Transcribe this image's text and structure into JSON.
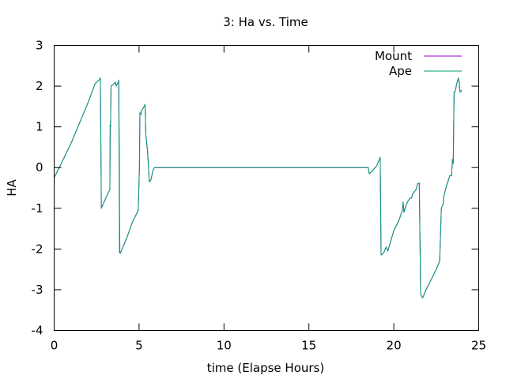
{
  "chart_data": {
    "type": "line",
    "title": "3: Ha vs. Time",
    "xlabel": "time (Elapse Hours)",
    "ylabel": "HA",
    "xlim": [
      0,
      25
    ],
    "ylim": [
      -4,
      3
    ],
    "xticks": [
      0,
      5,
      10,
      15,
      20,
      25
    ],
    "yticks": [
      -4,
      -3,
      -2,
      -1,
      0,
      1,
      2,
      3
    ],
    "grid": false,
    "legend_position": "top-right",
    "series": [
      {
        "name": "Mount",
        "color": "#9400d3",
        "points": [
          [
            0.0,
            -0.25
          ],
          [
            0.3,
            0.0
          ],
          [
            1.0,
            0.6
          ],
          [
            2.0,
            1.6
          ],
          [
            2.4,
            2.05
          ],
          [
            2.5,
            2.1
          ],
          [
            2.65,
            2.15
          ],
          [
            2.72,
            2.2
          ],
          [
            2.78,
            -1.0
          ],
          [
            3.2,
            -0.6
          ],
          [
            3.28,
            -0.55
          ],
          [
            3.3,
            1.05
          ],
          [
            3.32,
            1.0
          ],
          [
            3.35,
            2.0
          ],
          [
            3.5,
            2.05
          ],
          [
            3.6,
            2.1
          ],
          [
            3.65,
            2.0
          ],
          [
            3.78,
            2.1
          ],
          [
            3.8,
            2.15
          ],
          [
            3.83,
            0.7
          ],
          [
            3.84,
            0.0
          ],
          [
            3.85,
            -1.0
          ],
          [
            3.87,
            -2.1
          ],
          [
            3.9,
            -2.1
          ],
          [
            4.3,
            -1.7
          ],
          [
            4.6,
            -1.35
          ],
          [
            4.95,
            -1.05
          ],
          [
            5.0,
            -0.3
          ],
          [
            5.02,
            -0.05
          ],
          [
            5.05,
            1.35
          ],
          [
            5.1,
            1.3
          ],
          [
            5.15,
            1.4
          ],
          [
            5.3,
            1.5
          ],
          [
            5.35,
            1.55
          ],
          [
            5.4,
            0.8
          ],
          [
            5.5,
            0.4
          ],
          [
            5.55,
            0.05
          ],
          [
            5.6,
            -0.35
          ],
          [
            5.7,
            -0.3
          ],
          [
            5.8,
            -0.1
          ],
          [
            5.9,
            0.0
          ],
          [
            18.5,
            0.0
          ],
          [
            18.55,
            -0.15
          ],
          [
            18.7,
            -0.1
          ],
          [
            19.0,
            0.05
          ],
          [
            19.2,
            0.25
          ],
          [
            19.25,
            -2.15
          ],
          [
            19.4,
            -2.1
          ],
          [
            19.55,
            -1.95
          ],
          [
            19.65,
            -2.05
          ],
          [
            20.0,
            -1.55
          ],
          [
            20.3,
            -1.3
          ],
          [
            20.5,
            -1.05
          ],
          [
            20.55,
            -0.85
          ],
          [
            20.6,
            -1.1
          ],
          [
            20.7,
            -0.95
          ],
          [
            20.8,
            -0.85
          ],
          [
            20.95,
            -0.75
          ],
          [
            21.05,
            -0.75
          ],
          [
            21.1,
            -0.65
          ],
          [
            21.3,
            -0.55
          ],
          [
            21.4,
            -0.4
          ],
          [
            21.5,
            -0.38
          ],
          [
            21.58,
            -3.1
          ],
          [
            21.62,
            -3.15
          ],
          [
            21.7,
            -3.2
          ],
          [
            21.9,
            -3.0
          ],
          [
            22.2,
            -2.75
          ],
          [
            22.5,
            -2.5
          ],
          [
            22.7,
            -2.3
          ],
          [
            22.8,
            -1.0
          ],
          [
            22.9,
            -0.9
          ],
          [
            22.95,
            -0.7
          ],
          [
            23.1,
            -0.45
          ],
          [
            23.3,
            -0.2
          ],
          [
            23.4,
            -0.2
          ],
          [
            23.45,
            0.2
          ],
          [
            23.5,
            0.1
          ],
          [
            23.55,
            1.85
          ],
          [
            23.6,
            1.85
          ],
          [
            23.7,
            2.05
          ],
          [
            23.8,
            2.2
          ],
          [
            23.85,
            2.1
          ],
          [
            23.9,
            1.85
          ],
          [
            24.0,
            1.9
          ]
        ]
      },
      {
        "name": "Ape",
        "color": "#009e73",
        "points": [
          [
            0.0,
            -0.25
          ],
          [
            0.3,
            0.0
          ],
          [
            1.0,
            0.6
          ],
          [
            2.0,
            1.6
          ],
          [
            2.4,
            2.05
          ],
          [
            2.5,
            2.1
          ],
          [
            2.65,
            2.15
          ],
          [
            2.72,
            2.2
          ],
          [
            2.78,
            -1.0
          ],
          [
            3.2,
            -0.6
          ],
          [
            3.28,
            -0.55
          ],
          [
            3.3,
            1.05
          ],
          [
            3.32,
            1.0
          ],
          [
            3.35,
            2.0
          ],
          [
            3.5,
            2.05
          ],
          [
            3.6,
            2.1
          ],
          [
            3.65,
            2.0
          ],
          [
            3.78,
            2.1
          ],
          [
            3.8,
            2.15
          ],
          [
            3.85,
            -2.1
          ],
          [
            3.9,
            -2.1
          ],
          [
            4.3,
            -1.7
          ],
          [
            4.6,
            -1.35
          ],
          [
            4.95,
            -1.05
          ],
          [
            5.02,
            -0.05
          ],
          [
            5.05,
            1.35
          ],
          [
            5.1,
            1.3
          ],
          [
            5.15,
            1.4
          ],
          [
            5.3,
            1.5
          ],
          [
            5.35,
            1.55
          ],
          [
            5.4,
            0.8
          ],
          [
            5.5,
            0.4
          ],
          [
            5.55,
            0.05
          ],
          [
            5.6,
            -0.35
          ],
          [
            5.7,
            -0.3
          ],
          [
            5.8,
            -0.1
          ],
          [
            5.9,
            0.0
          ],
          [
            18.5,
            0.0
          ],
          [
            18.55,
            -0.15
          ],
          [
            18.7,
            -0.1
          ],
          [
            19.0,
            0.05
          ],
          [
            19.2,
            0.25
          ],
          [
            19.25,
            -2.15
          ],
          [
            19.4,
            -2.1
          ],
          [
            19.55,
            -1.95
          ],
          [
            19.65,
            -2.05
          ],
          [
            20.0,
            -1.55
          ],
          [
            20.3,
            -1.3
          ],
          [
            20.5,
            -1.05
          ],
          [
            20.55,
            -0.85
          ],
          [
            20.6,
            -1.1
          ],
          [
            20.7,
            -0.95
          ],
          [
            20.8,
            -0.85
          ],
          [
            20.95,
            -0.75
          ],
          [
            21.05,
            -0.75
          ],
          [
            21.1,
            -0.65
          ],
          [
            21.3,
            -0.55
          ],
          [
            21.4,
            -0.4
          ],
          [
            21.5,
            -0.38
          ],
          [
            21.58,
            -3.1
          ],
          [
            21.62,
            -3.15
          ],
          [
            21.7,
            -3.2
          ],
          [
            21.9,
            -3.0
          ],
          [
            22.2,
            -2.75
          ],
          [
            22.5,
            -2.5
          ],
          [
            22.7,
            -2.3
          ],
          [
            22.8,
            -1.0
          ],
          [
            22.9,
            -0.9
          ],
          [
            22.95,
            -0.7
          ],
          [
            23.1,
            -0.45
          ],
          [
            23.3,
            -0.2
          ],
          [
            23.4,
            -0.2
          ],
          [
            23.45,
            0.2
          ],
          [
            23.5,
            0.1
          ],
          [
            23.55,
            1.85
          ],
          [
            23.6,
            1.85
          ],
          [
            23.7,
            2.05
          ],
          [
            23.8,
            2.2
          ],
          [
            23.85,
            2.1
          ],
          [
            23.9,
            1.85
          ],
          [
            24.0,
            1.9
          ]
        ]
      }
    ]
  }
}
